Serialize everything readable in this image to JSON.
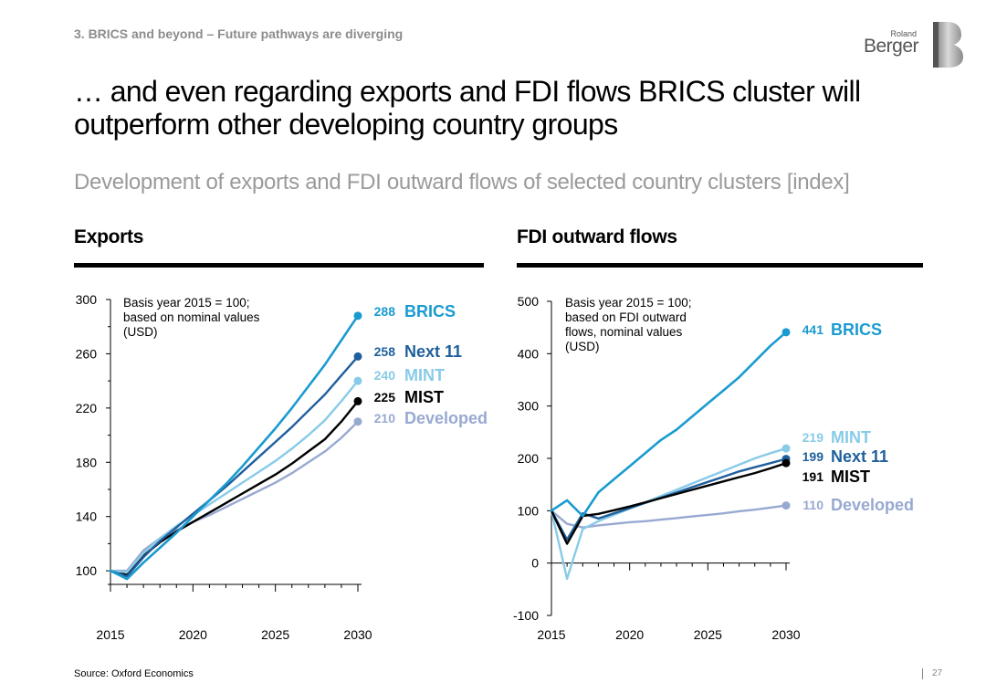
{
  "header": {
    "breadcrumb": "3. BRICS and beyond – Future pathways are diverging",
    "logo_top": "Roland",
    "logo_main": "Berger"
  },
  "title": "… and even regarding exports and FDI flows BRICS cluster will outperform other developing country groups",
  "subtitle": "Development of exports and FDI outward flows of selected country clusters [index]",
  "footer": {
    "source": "Source: Oxford Economics",
    "page": "27"
  },
  "colors": {
    "BRICS": "#1a9bd0",
    "Next 11": "#1f5f9c",
    "MINT": "#88cbe8",
    "MIST": "#000000",
    "Developed": "#98a9d1"
  },
  "chart_data": [
    {
      "type": "line",
      "title": "Exports",
      "note": "Basis year 2015 = 100; based on nominal values (USD)",
      "ylim": [
        90,
        300
      ],
      "yticks": [
        100,
        140,
        180,
        220,
        260,
        300
      ],
      "xlim": [
        2015,
        2030
      ],
      "xticks": [
        2015,
        2020,
        2025,
        2030
      ],
      "series": [
        {
          "name": "Developed",
          "x": [
            2015,
            2016,
            2017,
            2018,
            2019,
            2020,
            2021,
            2022,
            2023,
            2024,
            2025,
            2026,
            2027,
            2028,
            2029,
            2030
          ],
          "y": [
            100,
            100,
            115,
            124,
            130,
            136,
            141,
            147,
            153,
            159,
            165,
            172,
            180,
            188,
            198,
            210
          ],
          "end_label": "210"
        },
        {
          "name": "MIST",
          "x": [
            2015,
            2016,
            2017,
            2018,
            2019,
            2020,
            2021,
            2022,
            2023,
            2024,
            2025,
            2026,
            2027,
            2028,
            2029,
            2030
          ],
          "y": [
            100,
            97,
            111,
            121,
            129,
            136,
            143,
            150,
            157,
            164,
            171,
            179,
            188,
            197,
            210,
            225
          ],
          "end_label": "225"
        },
        {
          "name": "MINT",
          "x": [
            2015,
            2016,
            2017,
            2018,
            2019,
            2020,
            2021,
            2022,
            2023,
            2024,
            2025,
            2026,
            2027,
            2028,
            2029,
            2030
          ],
          "y": [
            100,
            99,
            113,
            124,
            133,
            141,
            149,
            157,
            165,
            173,
            181,
            190,
            200,
            211,
            225,
            240
          ],
          "end_label": "240"
        },
        {
          "name": "Next 11",
          "x": [
            2015,
            2016,
            2017,
            2018,
            2019,
            2020,
            2021,
            2022,
            2023,
            2024,
            2025,
            2026,
            2027,
            2028,
            2029,
            2030
          ],
          "y": [
            100,
            96,
            110,
            122,
            132,
            142,
            152,
            162,
            173,
            184,
            195,
            206,
            218,
            230,
            244,
            258
          ],
          "end_label": "258"
        },
        {
          "name": "BRICS",
          "x": [
            2015,
            2016,
            2017,
            2018,
            2019,
            2020,
            2021,
            2022,
            2023,
            2024,
            2025,
            2026,
            2027,
            2028,
            2029,
            2030
          ],
          "y": [
            100,
            94,
            106,
            117,
            128,
            140,
            152,
            164,
            177,
            191,
            205,
            220,
            236,
            252,
            270,
            288
          ],
          "end_label": "288"
        }
      ]
    },
    {
      "type": "line",
      "title": "FDI outward flows",
      "note": "Basis year 2015 = 100; based on FDI outward flows, nominal values (USD)",
      "ylim": [
        -100,
        500
      ],
      "yticks": [
        -100,
        0,
        100,
        200,
        300,
        400,
        500
      ],
      "xlim": [
        2015,
        2030
      ],
      "xticks": [
        2015,
        2020,
        2025,
        2030
      ],
      "series": [
        {
          "name": "Developed",
          "x": [
            2015,
            2016,
            2017,
            2018,
            2019,
            2020,
            2021,
            2022,
            2023,
            2024,
            2025,
            2026,
            2027,
            2028,
            2029,
            2030
          ],
          "y": [
            100,
            75,
            68,
            72,
            75,
            78,
            80,
            83,
            86,
            89,
            92,
            95,
            99,
            102,
            106,
            110
          ],
          "end_label": "110"
        },
        {
          "name": "MINT",
          "x": [
            2015,
            2016,
            2017,
            2018,
            2019,
            2020,
            2021,
            2022,
            2023,
            2024,
            2025,
            2026,
            2027,
            2028,
            2029,
            2030
          ],
          "y": [
            100,
            -30,
            65,
            80,
            92,
            104,
            116,
            128,
            140,
            152,
            164,
            176,
            188,
            200,
            210,
            219
          ],
          "end_label": "219"
        },
        {
          "name": "Next 11",
          "x": [
            2015,
            2016,
            2017,
            2018,
            2019,
            2020,
            2021,
            2022,
            2023,
            2024,
            2025,
            2026,
            2027,
            2028,
            2029,
            2030
          ],
          "y": [
            100,
            45,
            95,
            85,
            95,
            105,
            115,
            125,
            135,
            145,
            155,
            165,
            175,
            183,
            191,
            199
          ],
          "end_label": "199"
        },
        {
          "name": "MIST",
          "x": [
            2015,
            2016,
            2017,
            2018,
            2019,
            2020,
            2021,
            2022,
            2023,
            2024,
            2025,
            2026,
            2027,
            2028,
            2029,
            2030
          ],
          "y": [
            100,
            37,
            90,
            94,
            101,
            108,
            116,
            124,
            132,
            140,
            148,
            156,
            164,
            172,
            181,
            191
          ],
          "end_label": "191"
        },
        {
          "name": "BRICS",
          "x": [
            2015,
            2016,
            2017,
            2018,
            2019,
            2020,
            2021,
            2022,
            2023,
            2024,
            2025,
            2026,
            2027,
            2028,
            2029,
            2030
          ],
          "y": [
            100,
            120,
            90,
            135,
            160,
            185,
            210,
            235,
            255,
            280,
            305,
            330,
            355,
            385,
            415,
            441
          ],
          "end_label": "441"
        }
      ]
    }
  ]
}
